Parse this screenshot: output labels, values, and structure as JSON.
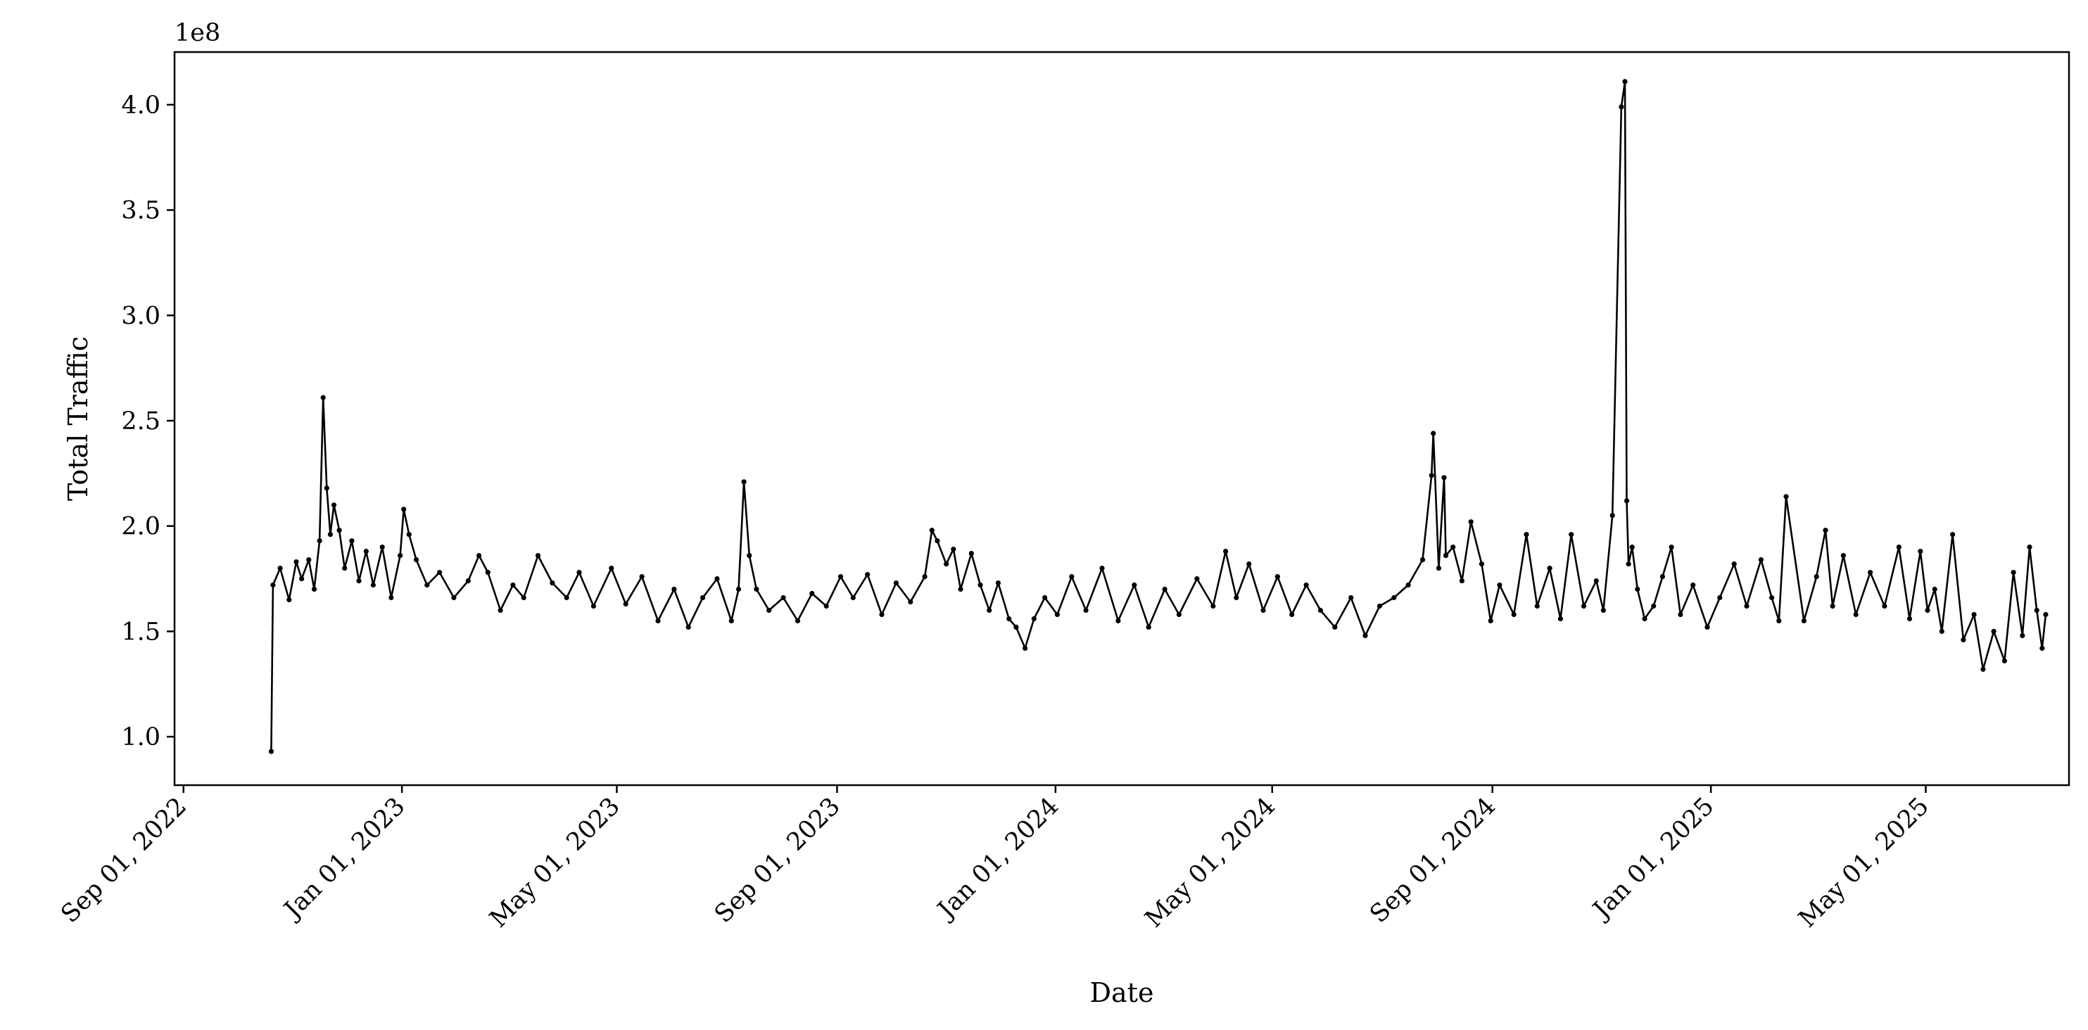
{
  "chart_data": {
    "type": "line",
    "xlabel": "Date",
    "ylabel": "Total Traffic",
    "y_offset_label": "1e8",
    "x_range": [
      "2022-08-27",
      "2025-07-20"
    ],
    "ylim": [
      0.77,
      4.25
    ],
    "y_scale_factor": 100000000,
    "x_ticks": [
      {
        "date": "2022-09-01",
        "label": "Sep 01, 2022"
      },
      {
        "date": "2023-01-01",
        "label": "Jan 01, 2023"
      },
      {
        "date": "2023-05-01",
        "label": "May 01, 2023"
      },
      {
        "date": "2023-09-01",
        "label": "Sep 01, 2023"
      },
      {
        "date": "2024-01-01",
        "label": "Jan 01, 2024"
      },
      {
        "date": "2024-05-01",
        "label": "May 01, 2024"
      },
      {
        "date": "2024-09-01",
        "label": "Sep 01, 2024"
      },
      {
        "date": "2025-01-01",
        "label": "Jan 01, 2025"
      },
      {
        "date": "2025-05-01",
        "label": "May 01, 2025"
      }
    ],
    "y_ticks": [
      {
        "value": 1.0,
        "label": "1.0"
      },
      {
        "value": 1.5,
        "label": "1.5"
      },
      {
        "value": 2.0,
        "label": "2.0"
      },
      {
        "value": 2.5,
        "label": "2.5"
      },
      {
        "value": 3.0,
        "label": "3.0"
      },
      {
        "value": 3.5,
        "label": "3.5"
      },
      {
        "value": 4.0,
        "label": "4.0"
      }
    ],
    "grid": false,
    "line_color": "#000000",
    "marker": "dot",
    "series": [
      {
        "x": [
          "2022-10-20",
          "2022-10-21",
          "2022-10-25",
          "2022-10-30",
          "2022-11-03",
          "2022-11-06",
          "2022-11-10",
          "2022-11-13",
          "2022-11-16",
          "2022-11-18",
          "2022-11-20",
          "2022-11-22",
          "2022-11-24",
          "2022-11-27",
          "2022-11-30",
          "2022-12-04",
          "2022-12-08",
          "2022-12-12",
          "2022-12-16",
          "2022-12-21",
          "2022-12-26",
          "2022-12-31",
          "2023-01-02",
          "2023-01-05",
          "2023-01-09",
          "2023-01-15",
          "2023-01-22",
          "2023-01-30",
          "2023-02-07",
          "2023-02-13",
          "2023-02-18",
          "2023-02-25",
          "2023-03-04",
          "2023-03-10",
          "2023-03-18",
          "2023-03-26",
          "2023-04-03",
          "2023-04-10",
          "2023-04-18",
          "2023-04-28",
          "2023-05-06",
          "2023-05-15",
          "2023-05-24",
          "2023-06-02",
          "2023-06-10",
          "2023-06-18",
          "2023-06-26",
          "2023-07-04",
          "2023-07-08",
          "2023-07-11",
          "2023-07-14",
          "2023-07-18",
          "2023-07-25",
          "2023-08-02",
          "2023-08-10",
          "2023-08-18",
          "2023-08-26",
          "2023-09-03",
          "2023-09-10",
          "2023-09-18",
          "2023-09-26",
          "2023-10-04",
          "2023-10-12",
          "2023-10-20",
          "2023-10-24",
          "2023-10-27",
          "2023-11-01",
          "2023-11-05",
          "2023-11-09",
          "2023-11-15",
          "2023-11-20",
          "2023-11-25",
          "2023-11-30",
          "2023-12-06",
          "2023-12-10",
          "2023-12-15",
          "2023-12-20",
          "2023-12-26",
          "2024-01-02",
          "2024-01-10",
          "2024-01-18",
          "2024-01-27",
          "2024-02-05",
          "2024-02-14",
          "2024-02-22",
          "2024-03-02",
          "2024-03-10",
          "2024-03-20",
          "2024-03-29",
          "2024-04-05",
          "2024-04-11",
          "2024-04-18",
          "2024-04-26",
          "2024-05-04",
          "2024-05-12",
          "2024-05-20",
          "2024-05-28",
          "2024-06-05",
          "2024-06-14",
          "2024-06-22",
          "2024-06-30",
          "2024-07-08",
          "2024-07-16",
          "2024-07-24",
          "2024-07-29",
          "2024-07-30",
          "2024-08-02",
          "2024-08-05",
          "2024-08-06",
          "2024-08-10",
          "2024-08-15",
          "2024-08-20",
          "2024-08-26",
          "2024-08-31",
          "2024-09-05",
          "2024-09-13",
          "2024-09-20",
          "2024-09-26",
          "2024-10-03",
          "2024-10-09",
          "2024-10-15",
          "2024-10-22",
          "2024-10-29",
          "2024-11-02",
          "2024-11-07",
          "2024-11-12",
          "2024-11-14",
          "2024-11-15",
          "2024-11-16",
          "2024-11-18",
          "2024-11-21",
          "2024-11-25",
          "2024-11-30",
          "2024-12-05",
          "2024-12-10",
          "2024-12-15",
          "2024-12-22",
          "2024-12-30",
          "2025-01-06",
          "2025-01-14",
          "2025-01-21",
          "2025-01-29",
          "2025-02-04",
          "2025-02-08",
          "2025-02-12",
          "2025-02-22",
          "2025-03-01",
          "2025-03-06",
          "2025-03-10",
          "2025-03-16",
          "2025-03-23",
          "2025-03-31",
          "2025-04-08",
          "2025-04-16",
          "2025-04-22",
          "2025-04-28",
          "2025-05-02",
          "2025-05-06",
          "2025-05-10",
          "2025-05-16",
          "2025-05-22",
          "2025-05-28",
          "2025-06-02",
          "2025-06-08",
          "2025-06-14",
          "2025-06-19",
          "2025-06-24",
          "2025-06-28",
          "2025-07-02",
          "2025-07-05",
          "2025-07-07"
        ],
        "values": [
          0.93,
          1.72,
          1.8,
          1.65,
          1.83,
          1.75,
          1.84,
          1.7,
          1.93,
          2.61,
          2.18,
          1.96,
          2.1,
          1.98,
          1.8,
          1.93,
          1.74,
          1.88,
          1.72,
          1.9,
          1.66,
          1.86,
          2.08,
          1.96,
          1.84,
          1.72,
          1.78,
          1.66,
          1.74,
          1.86,
          1.78,
          1.6,
          1.72,
          1.66,
          1.86,
          1.73,
          1.66,
          1.78,
          1.62,
          1.8,
          1.63,
          1.76,
          1.55,
          1.7,
          1.52,
          1.66,
          1.75,
          1.55,
          1.7,
          2.21,
          1.86,
          1.7,
          1.6,
          1.66,
          1.55,
          1.68,
          1.62,
          1.76,
          1.66,
          1.77,
          1.58,
          1.73,
          1.64,
          1.76,
          1.98,
          1.93,
          1.82,
          1.89,
          1.7,
          1.87,
          1.72,
          1.6,
          1.73,
          1.56,
          1.52,
          1.42,
          1.56,
          1.66,
          1.58,
          1.76,
          1.6,
          1.8,
          1.55,
          1.72,
          1.52,
          1.7,
          1.58,
          1.75,
          1.62,
          1.88,
          1.66,
          1.82,
          1.6,
          1.76,
          1.58,
          1.72,
          1.6,
          1.52,
          1.66,
          1.48,
          1.62,
          1.66,
          1.72,
          1.84,
          2.24,
          2.44,
          1.8,
          2.23,
          1.86,
          1.9,
          1.74,
          2.02,
          1.82,
          1.55,
          1.72,
          1.58,
          1.96,
          1.62,
          1.8,
          1.56,
          1.96,
          1.62,
          1.74,
          1.6,
          2.05,
          3.99,
          4.11,
          2.12,
          1.82,
          1.9,
          1.7,
          1.56,
          1.62,
          1.76,
          1.9,
          1.58,
          1.72,
          1.52,
          1.66,
          1.82,
          1.62,
          1.84,
          1.66,
          1.55,
          2.14,
          1.55,
          1.76,
          1.98,
          1.62,
          1.86,
          1.58,
          1.78,
          1.62,
          1.9,
          1.56,
          1.88,
          1.6,
          1.7,
          1.5,
          1.96,
          1.46,
          1.58,
          1.32,
          1.5,
          1.36,
          1.78,
          1.48,
          1.9,
          1.6,
          1.42,
          1.58
        ]
      }
    ]
  }
}
